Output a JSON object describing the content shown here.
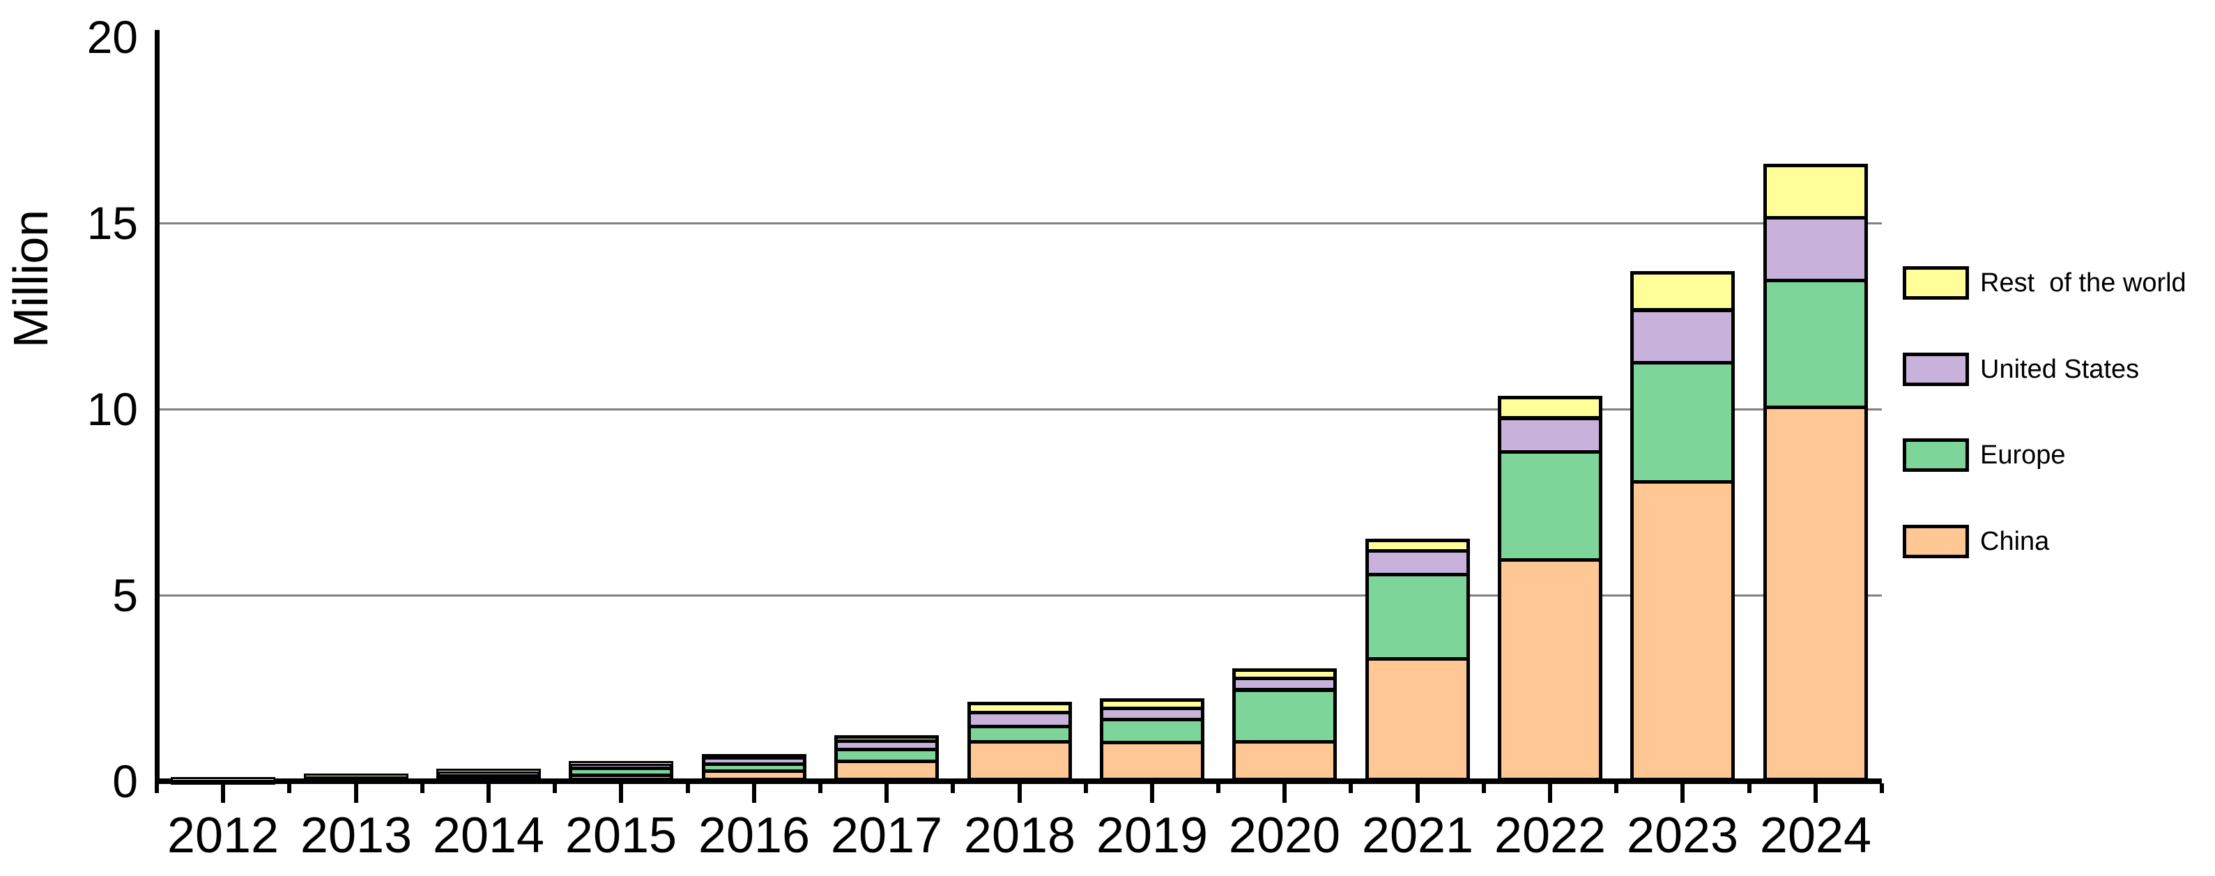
{
  "chart_data": {
    "type": "bar",
    "stacked": true,
    "title": "",
    "xlabel": "",
    "ylabel": "Million",
    "categories": [
      "2012",
      "2013",
      "2014",
      "2015",
      "2016",
      "2017",
      "2018",
      "2019",
      "2020",
      "2021",
      "2022",
      "2023",
      "2024"
    ],
    "series": [
      {
        "name": "China",
        "color": "#FFC794",
        "values": [
          0.01,
          0.02,
          0.08,
          0.22,
          0.32,
          0.58,
          1.1,
          1.09,
          1.11,
          3.33,
          6.0,
          8.1,
          10.1
        ]
      },
      {
        "name": "Europe",
        "color": "#7ED59A",
        "values": [
          0.03,
          0.05,
          0.1,
          0.18,
          0.19,
          0.32,
          0.42,
          0.61,
          1.39,
          2.27,
          2.9,
          3.2,
          3.4
        ]
      },
      {
        "name": "United States",
        "color": "#C8B2DB",
        "values": [
          0.05,
          0.1,
          0.12,
          0.11,
          0.16,
          0.22,
          0.37,
          0.3,
          0.3,
          0.64,
          0.9,
          1.4,
          1.7
        ]
      },
      {
        "name": "Rest of the world",
        "color": "#FFFF99",
        "values": [
          0.03,
          0.04,
          0.04,
          0.04,
          0.06,
          0.12,
          0.24,
          0.23,
          0.23,
          0.28,
          0.55,
          1.0,
          1.4
        ]
      }
    ],
    "totals": [
      0.12,
      0.21,
      0.34,
      0.55,
      0.73,
      1.24,
      2.13,
      2.23,
      3.03,
      6.52,
      10.35,
      13.7,
      16.6
    ],
    "ylim": [
      0,
      20
    ],
    "yticks": [
      0,
      5,
      10,
      15,
      20
    ],
    "gridlines_at": [
      5,
      10,
      15
    ],
    "grid": "horizontal-gray",
    "legend_position": "right-outside"
  },
  "axes": {
    "y_tick_labels": [
      "0",
      "5",
      "10",
      "15",
      "20"
    ],
    "x_tick_labels": [
      "2012",
      "2013",
      "2014",
      "2015",
      "2016",
      "2017",
      "2018",
      "2019",
      "2020",
      "2021",
      "2022",
      "2023",
      "2024"
    ],
    "y_axis_title": "Million"
  },
  "legend": {
    "items": [
      {
        "label": "Rest  of the world",
        "color": "#FFFF99"
      },
      {
        "label": "United States",
        "color": "#C8B2DB"
      },
      {
        "label": "Europe",
        "color": "#7ED59A"
      },
      {
        "label": "China",
        "color": "#FFC794"
      }
    ]
  },
  "colors": {
    "china": "#FFC794",
    "europe": "#7ED59A",
    "united_states": "#C8B2DB",
    "rest_of_world": "#FFFF99",
    "bar_border": "#000000",
    "gridline": "#808080",
    "axis": "#000000",
    "background": "#FFFFFF"
  }
}
